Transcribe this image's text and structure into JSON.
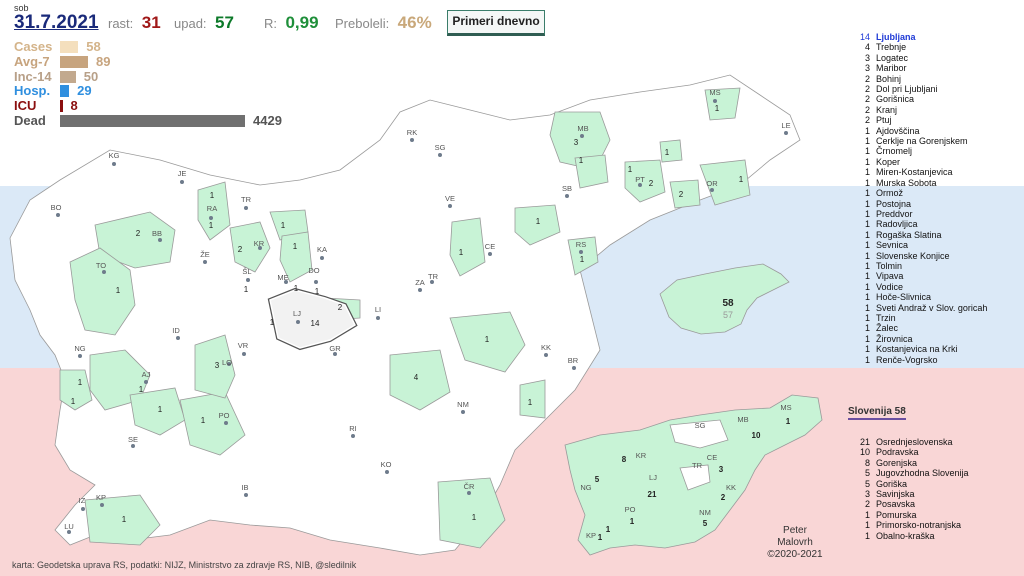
{
  "header": {
    "day": "sob",
    "date": "31.7.2021",
    "rast_label": "rast:",
    "rast_value": "31",
    "upad_label": "upad:",
    "upad_value": "57",
    "r_label": "R:",
    "r_value": "0,99",
    "preboleli_label": "Preboleli:",
    "preboleli_value": "46%",
    "primeri_button": "Primeri dnevno"
  },
  "stats": [
    {
      "label": "Cases",
      "value": "58",
      "bar_value": 58,
      "color": "#f4dfbd",
      "label_color": "#d4b48a"
    },
    {
      "label": "Avg-7",
      "value": "89",
      "bar_value": 89,
      "color": "#c7a47e",
      "label_color": "#c7a47e"
    },
    {
      "label": "Inc-14",
      "value": "50",
      "bar_value": 50,
      "color": "#c2a98e",
      "label_color": "#b8a088"
    },
    {
      "label": "Hosp.",
      "value": "29",
      "bar_value": 29,
      "color": "#2f8fdf",
      "label_color": "#2f8fdf"
    },
    {
      "label": "ICU",
      "value": "8",
      "bar_value": 8,
      "color": "#8b0f0f",
      "label_color": "#8b0f0f"
    },
    {
      "label": "Dead",
      "value": "4429",
      "bar_value": 4429,
      "color": "#707070",
      "label_color": "#555555"
    }
  ],
  "municipality_list": [
    {
      "n": "14",
      "name": "Ljubljana"
    },
    {
      "n": "4",
      "name": "Trebnje"
    },
    {
      "n": "3",
      "name": "Logatec"
    },
    {
      "n": "3",
      "name": "Maribor"
    },
    {
      "n": "2",
      "name": "Bohinj"
    },
    {
      "n": "2",
      "name": "Dol pri Ljubljani"
    },
    {
      "n": "2",
      "name": "Gorišnica"
    },
    {
      "n": "2",
      "name": "Kranj"
    },
    {
      "n": "2",
      "name": "Ptuj"
    },
    {
      "n": "1",
      "name": "Ajdovščina"
    },
    {
      "n": "1",
      "name": "Cerklje na Gorenjskem"
    },
    {
      "n": "1",
      "name": "Črnomelj"
    },
    {
      "n": "1",
      "name": "Koper"
    },
    {
      "n": "1",
      "name": "Miren-Kostanjevica"
    },
    {
      "n": "1",
      "name": "Murska Sobota"
    },
    {
      "n": "1",
      "name": "Ormož"
    },
    {
      "n": "1",
      "name": "Postojna"
    },
    {
      "n": "1",
      "name": "Preddvor"
    },
    {
      "n": "1",
      "name": "Radovljica"
    },
    {
      "n": "1",
      "name": "Rogaška Slatina"
    },
    {
      "n": "1",
      "name": "Sevnica"
    },
    {
      "n": "1",
      "name": "Slovenske Konjice"
    },
    {
      "n": "1",
      "name": "Tolmin"
    },
    {
      "n": "1",
      "name": "Vipava"
    },
    {
      "n": "1",
      "name": "Vodice"
    },
    {
      "n": "1",
      "name": "Hoče-Slivnica"
    },
    {
      "n": "1",
      "name": "Sveti Andraž v Slov. goricah"
    },
    {
      "n": "1",
      "name": "Trzin"
    },
    {
      "n": "1",
      "name": "Žalec"
    },
    {
      "n": "1",
      "name": "Žirovnica"
    },
    {
      "n": "1",
      "name": "Kostanjevica na Krki"
    },
    {
      "n": "1",
      "name": "Renče-Vogrsko"
    }
  ],
  "region_title": "Slovenija 58",
  "region_list": [
    {
      "n": "21",
      "name": "Osrednjeslovenska"
    },
    {
      "n": "10",
      "name": "Podravska"
    },
    {
      "n": "8",
      "name": "Gorenjska"
    },
    {
      "n": "5",
      "name": "Jugovzhodna Slovenija"
    },
    {
      "n": "5",
      "name": "Goriška"
    },
    {
      "n": "3",
      "name": "Savinjska"
    },
    {
      "n": "2",
      "name": "Posavska"
    },
    {
      "n": "1",
      "name": "Pomurska"
    },
    {
      "n": "1",
      "name": "Primorsko-notranjska"
    },
    {
      "n": "1",
      "name": "Obalno-kraška"
    }
  ],
  "mini_map": {
    "value": "58",
    "sub_value": "57"
  },
  "map_labels": {
    "city_codes": [
      "KG",
      "JE",
      "BO",
      "RA",
      "TR",
      "KR",
      "BB",
      "ŽE",
      "KA",
      "ŠL",
      "TO",
      "ME",
      "DO",
      "LJ",
      "LI",
      "ID",
      "VR",
      "LO",
      "NG",
      "AJ",
      "PO",
      "SE",
      "KP",
      "IZ",
      "LU",
      "IB",
      "KO",
      "ČR",
      "RI",
      "NM",
      "KK",
      "BR",
      "GR",
      "ZA",
      "TR",
      "CE",
      "VE",
      "SG",
      "RK",
      "MB",
      "PT",
      "OR",
      "SB",
      "RS",
      "MS",
      "LE"
    ],
    "case_numbers": [
      "1",
      "1",
      "2",
      "2",
      "1",
      "1",
      "1",
      "1",
      "1",
      "14",
      "2",
      "1",
      "1",
      "3",
      "1",
      "1",
      "1",
      "1",
      "4",
      "1",
      "1",
      "1",
      "1",
      "1",
      "1",
      "3",
      "1",
      "2",
      "1",
      "2",
      "1",
      "1",
      "1",
      "1",
      "1"
    ]
  },
  "region_map_labels": {
    "codes": [
      "SG",
      "MB",
      "MS",
      "KR",
      "CE",
      "TR",
      "NG",
      "LJ",
      "KK",
      "PO",
      "NM",
      "KP"
    ],
    "numbers": [
      "8",
      "10",
      "1",
      "5",
      "21",
      "3",
      "2",
      "1",
      "5",
      "1",
      "1"
    ]
  },
  "credits": "karta: Geodetska uprava RS, podatki: NIJZ, Ministrstvo za zdravje RS, NIB, @sledilnik",
  "author": {
    "line1": "Peter",
    "line2": "Malovrh",
    "line3": "©2020-2021"
  },
  "colors": {
    "green_fill": "#c8f3d6",
    "muni_stroke": "#9a9a9a",
    "ljubljana_outline": "#555555",
    "date_color": "#1a2a7a"
  }
}
